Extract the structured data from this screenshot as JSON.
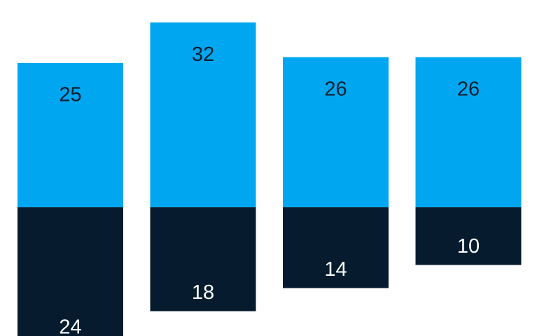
{
  "chart_data": {
    "type": "diverging-bar",
    "series": [
      {
        "name": null,
        "color": "#00a6f0",
        "label_color": "#0b1e2e",
        "values": [
          25,
          32,
          26,
          26
        ]
      },
      {
        "name": null,
        "color": "#061c2e",
        "label_color": "#ffffff",
        "values": [
          24,
          18,
          14,
          10
        ]
      }
    ],
    "ylim": [
      -22.3,
      35.9
    ]
  }
}
